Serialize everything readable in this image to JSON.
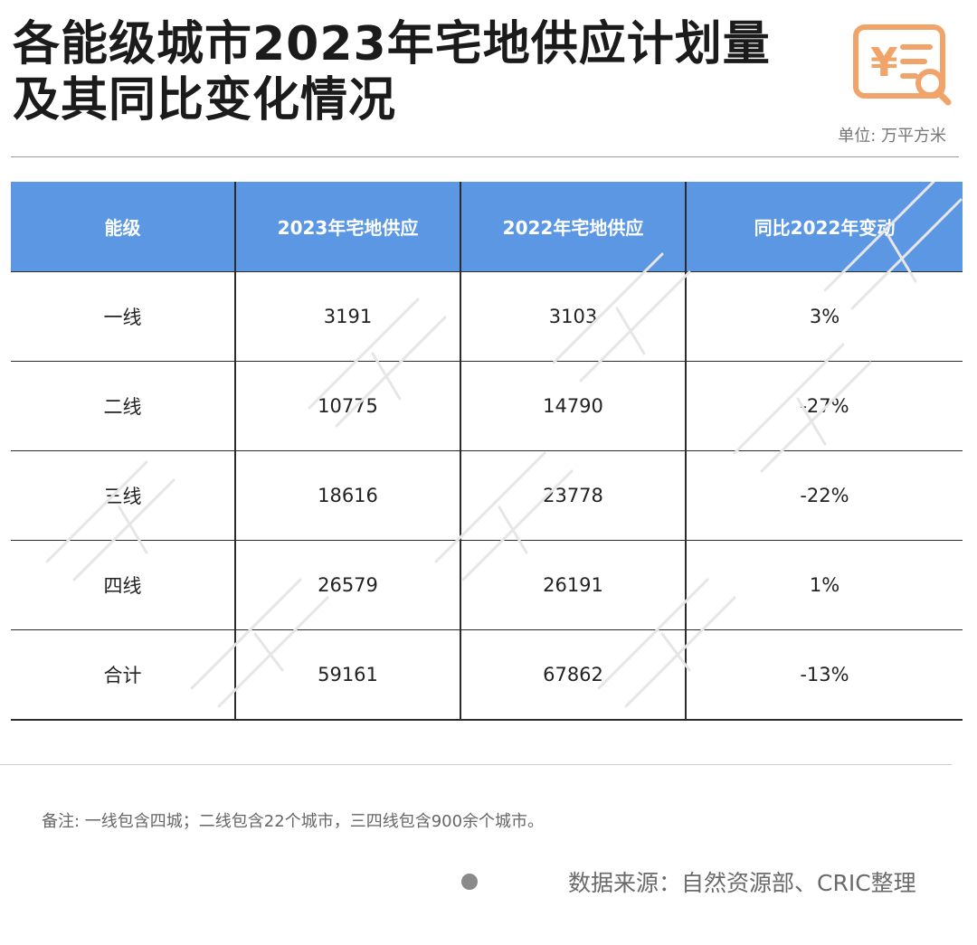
{
  "title": {
    "line1": "各能级城市2023年宅地供应计划量",
    "line2": "及其同比变化情况"
  },
  "unit": "单位: 万平方米",
  "logo_icon": "receipt-search-icon",
  "colors": {
    "header_bg": "#5b97e3",
    "logo_orange": "#f0a46a"
  },
  "chart_data": {
    "type": "table",
    "columns": [
      "能级",
      "2023年宅地供应",
      "2022年宅地供应",
      "同比2022年变动"
    ],
    "rows": [
      [
        "一线",
        "3191",
        "3103",
        "3%"
      ],
      [
        "二线",
        "10775",
        "14790",
        "-27%"
      ],
      [
        "三线",
        "18616",
        "23778",
        "-22%"
      ],
      [
        "四线",
        "26579",
        "26191",
        "1%"
      ],
      [
        "合计",
        "59161",
        "67862",
        "-13%"
      ]
    ]
  },
  "note": "备注: 一线包含四城；二线包含22个城市，三四线包含900余个城市。",
  "source": "数据来源：自然资源部、CRIC整理"
}
